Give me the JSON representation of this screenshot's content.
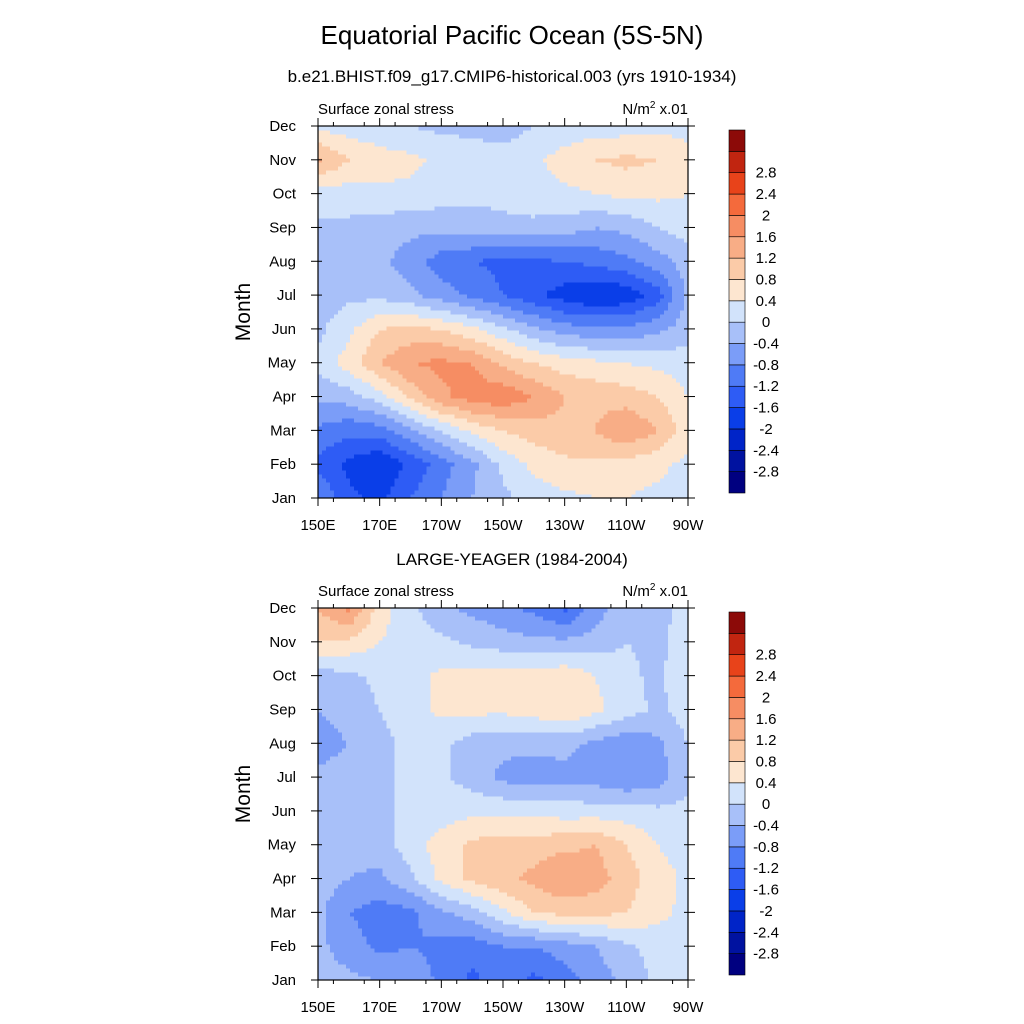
{
  "title": "Equatorial Pacific Ocean (5S-5N)",
  "colorbar": {
    "levels": [
      -3.2,
      -2.8,
      -2.4,
      -2.0,
      -1.6,
      -1.2,
      -0.8,
      -0.4,
      0.0,
      0.4,
      0.8,
      1.2,
      1.6,
      2.0,
      2.4,
      2.8,
      3.2
    ],
    "labels": [
      "-2.8",
      "-2.4",
      "-2",
      "-1.6",
      "-1.2",
      "-0.8",
      "-0.4",
      "0",
      "0.4",
      "0.8",
      "1.2",
      "1.6",
      "2",
      "2.4",
      "2.8"
    ],
    "colors": [
      "#000080",
      "#0012a0",
      "#0024c8",
      "#0a3ee8",
      "#2e5cf5",
      "#4f7bf6",
      "#7b9df8",
      "#a8c0f9",
      "#d2e3fb",
      "#fde6d0",
      "#fbcba8",
      "#f8ad86",
      "#f68d63",
      "#f46a3c",
      "#e8431a",
      "#c12510",
      "#8c0a08"
    ]
  },
  "chart_data": [
    {
      "type": "heatmap",
      "title": "b.e21.BHIST.f09_g17.CMIP6-historical.003 (yrs 1910-1934)",
      "left_label": "Surface zonal stress",
      "right_label_base": "N/m",
      "right_label_sup": "2",
      "right_label_tail": " x.01",
      "ylabel": "Month",
      "x_ticks": [
        "150E",
        "170E",
        "170W",
        "150W",
        "130W",
        "110W",
        "90W"
      ],
      "y_ticks": [
        "Jan",
        "Feb",
        "Mar",
        "Apr",
        "May",
        "Jun",
        "Jul",
        "Aug",
        "Sep",
        "Oct",
        "Nov",
        "Dec"
      ],
      "x_lon": [
        150,
        160,
        170,
        180,
        190,
        200,
        210,
        220,
        230,
        240,
        250,
        260,
        270
      ],
      "y_month": [
        "Jan",
        "Feb",
        "Mar",
        "Apr",
        "May",
        "Jun",
        "Jul",
        "Aug",
        "Sep",
        "Oct",
        "Nov",
        "Dec"
      ],
      "z": [
        [
          -0.8,
          -1.5,
          -1.7,
          -1.2,
          -0.8,
          -0.4,
          -0.1,
          0.2,
          0.3,
          0.4,
          0.4,
          0.3,
          0.2
        ],
        [
          -1.3,
          -1.7,
          -2.0,
          -1.5,
          -1.0,
          -0.5,
          0.1,
          0.5,
          0.7,
          0.7,
          0.6,
          0.5,
          0.3
        ],
        [
          -0.9,
          -1.1,
          -1.0,
          -0.5,
          0.0,
          0.5,
          0.8,
          1.0,
          1.1,
          1.2,
          1.6,
          1.2,
          0.6
        ],
        [
          -0.3,
          -0.2,
          0.2,
          0.9,
          1.5,
          1.8,
          1.9,
          1.6,
          1.2,
          1.1,
          1.0,
          0.8,
          0.4
        ],
        [
          0.1,
          0.6,
          1.2,
          1.6,
          1.7,
          1.6,
          1.1,
          0.8,
          0.6,
          0.5,
          0.4,
          0.3,
          0.2
        ],
        [
          -0.1,
          0.3,
          0.8,
          0.9,
          0.8,
          0.5,
          0.1,
          -0.3,
          -0.6,
          -0.7,
          -0.7,
          -0.5,
          -0.2
        ],
        [
          -0.2,
          -0.1,
          -0.1,
          -0.3,
          -0.6,
          -0.9,
          -1.2,
          -1.5,
          -1.8,
          -2.0,
          -1.9,
          -1.4,
          -0.3
        ],
        [
          -0.3,
          -0.4,
          -0.3,
          -0.6,
          -1.0,
          -1.2,
          -1.3,
          -1.3,
          -1.2,
          -1.1,
          -0.9,
          -0.6,
          -0.2
        ],
        [
          -0.1,
          -0.1,
          -0.2,
          -0.3,
          -0.3,
          -0.2,
          -0.1,
          -0.1,
          -0.2,
          -0.4,
          -0.3,
          0.0,
          0.2
        ],
        [
          0.2,
          0.2,
          0.3,
          0.3,
          0.2,
          0.1,
          0.1,
          0.2,
          0.3,
          0.4,
          0.5,
          0.5,
          0.4
        ],
        [
          1.3,
          0.8,
          0.6,
          0.5,
          0.3,
          0.2,
          0.2,
          0.3,
          0.6,
          0.8,
          0.9,
          0.8,
          0.5
        ],
        [
          0.3,
          0.2,
          0.1,
          0.0,
          -0.1,
          -0.1,
          -0.2,
          0.0,
          0.1,
          0.2,
          0.2,
          0.3,
          0.3
        ]
      ]
    },
    {
      "type": "heatmap",
      "title": "LARGE-YEAGER (1984-2004)",
      "left_label": "Surface zonal stress",
      "right_label_base": "N/m",
      "right_label_sup": "2",
      "right_label_tail": " x.01",
      "ylabel": "Month",
      "x_ticks": [
        "150E",
        "170E",
        "170W",
        "150W",
        "130W",
        "110W",
        "90W"
      ],
      "y_ticks": [
        "Jan",
        "Feb",
        "Mar",
        "Apr",
        "May",
        "Jun",
        "Jul",
        "Aug",
        "Sep",
        "Oct",
        "Nov",
        "Dec"
      ],
      "x_lon": [
        150,
        160,
        170,
        180,
        190,
        200,
        210,
        220,
        230,
        240,
        250,
        260,
        270
      ],
      "y_month": [
        "Jan",
        "Feb",
        "Mar",
        "Apr",
        "May",
        "Jun",
        "Jul",
        "Aug",
        "Sep",
        "Oct",
        "Nov",
        "Dec"
      ],
      "z": [
        [
          -0.2,
          -0.3,
          -0.4,
          -0.5,
          -0.9,
          -1.3,
          -1.0,
          -1.3,
          -1.0,
          -0.6,
          -0.3,
          0.1,
          0.2
        ],
        [
          -0.3,
          -0.6,
          -0.9,
          -0.8,
          -0.9,
          -1.0,
          -0.8,
          -0.8,
          -0.6,
          -0.4,
          -0.1,
          0.2,
          0.3
        ],
        [
          -0.3,
          -0.8,
          -1.0,
          -0.9,
          -0.5,
          -0.2,
          0.3,
          0.8,
          0.9,
          0.9,
          0.8,
          0.5,
          0.3
        ],
        [
          -0.2,
          -0.4,
          -0.5,
          -0.1,
          0.5,
          0.9,
          1.1,
          1.3,
          1.6,
          1.4,
          1.0,
          0.6,
          0.3
        ],
        [
          -0.1,
          -0.3,
          -0.2,
          0.2,
          0.6,
          0.9,
          1.0,
          1.0,
          1.1,
          1.2,
          0.8,
          0.4,
          0.2
        ],
        [
          -0.1,
          -0.2,
          -0.1,
          0.1,
          0.2,
          0.3,
          0.3,
          0.3,
          0.2,
          0.2,
          0.2,
          0.1,
          0.1
        ],
        [
          -0.3,
          -0.2,
          -0.1,
          0.1,
          0.1,
          -0.2,
          -0.5,
          -0.6,
          -0.5,
          -0.6,
          -0.8,
          -0.6,
          -0.1
        ],
        [
          -0.6,
          -0.4,
          -0.1,
          0.1,
          0.1,
          -0.2,
          -0.3,
          -0.3,
          -0.3,
          -0.5,
          -0.7,
          -0.5,
          0.0
        ],
        [
          -0.4,
          -0.2,
          0.0,
          0.2,
          0.5,
          0.5,
          0.5,
          0.6,
          0.8,
          0.5,
          0.2,
          -0.1,
          0.2
        ],
        [
          -0.2,
          -0.1,
          0.1,
          0.2,
          0.5,
          0.6,
          0.6,
          0.6,
          0.7,
          0.4,
          0.1,
          -0.1,
          0.3
        ],
        [
          0.8,
          0.7,
          0.4,
          0.2,
          0.1,
          -0.1,
          -0.2,
          -0.3,
          -0.3,
          -0.2,
          0.0,
          -0.1,
          0.2
        ],
        [
          1.2,
          1.7,
          0.6,
          0.1,
          -0.3,
          -0.5,
          -0.7,
          -0.9,
          -1.3,
          -0.6,
          -0.1,
          -0.1,
          0.1
        ]
      ]
    }
  ]
}
